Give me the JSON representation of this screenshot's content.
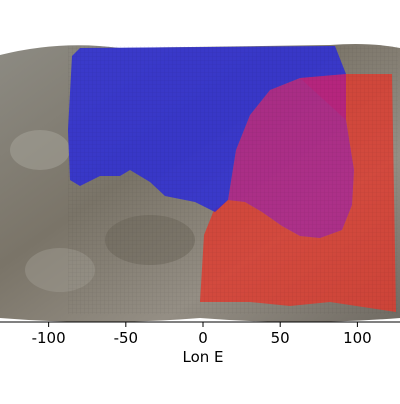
{
  "chart_data": {
    "type": "map",
    "xlabel": "Lon E",
    "xlim": [
      -131.5,
      127.6
    ],
    "xticks": [
      -100,
      -50,
      0,
      50,
      100
    ]
  }
}
